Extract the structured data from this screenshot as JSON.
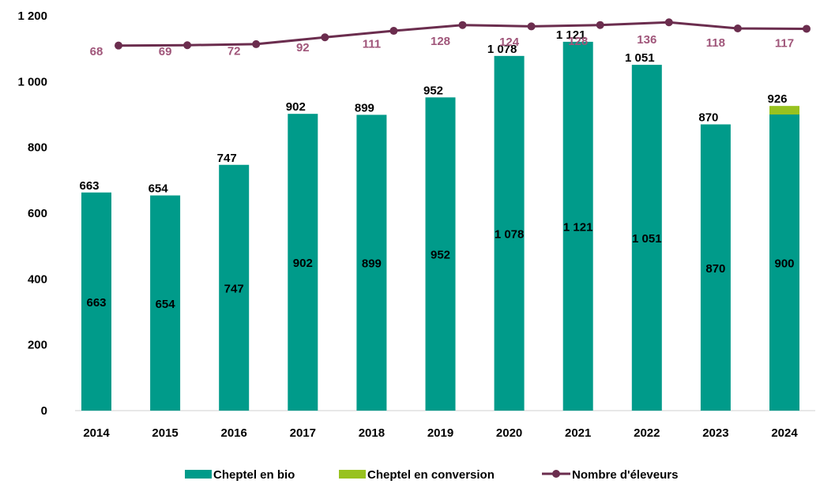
{
  "chart_data": {
    "type": "bar",
    "stacked": true,
    "categories": [
      "2014",
      "2015",
      "2016",
      "2017",
      "2018",
      "2019",
      "2020",
      "2021",
      "2022",
      "2023",
      "2024"
    ],
    "series": [
      {
        "name": "Cheptel en bio",
        "type": "bar",
        "color": "#009B8A",
        "values": [
          663,
          654,
          747,
          902,
          899,
          952,
          1078,
          1121,
          1051,
          870,
          900
        ],
        "labels": [
          "663",
          "654",
          "747",
          "902",
          "899",
          "952",
          "1 078",
          "1 121",
          "1 051",
          "870",
          "900"
        ]
      },
      {
        "name": "Cheptel en conversion",
        "type": "bar",
        "color": "#98C21F",
        "values": [
          0,
          0,
          0,
          0,
          0,
          0,
          0,
          0,
          0,
          0,
          26
        ]
      },
      {
        "name": "Nombre d'éleveurs",
        "type": "line",
        "color": "#6B2D4E",
        "label_color": "#A0567A",
        "values": [
          68,
          69,
          72,
          92,
          111,
          128,
          124,
          128,
          136,
          118,
          117
        ],
        "labels": [
          "68",
          "69",
          "72",
          "92",
          "111",
          "128",
          "124",
          "128",
          "136",
          "118",
          "117"
        ]
      }
    ],
    "totals": {
      "values": [
        663,
        654,
        747,
        902,
        899,
        952,
        1078,
        1121,
        1051,
        870,
        926
      ],
      "labels": [
        "663",
        "654",
        "747",
        "902",
        "899",
        "952",
        "1 078",
        "1 121",
        "1 051",
        "870",
        "926"
      ]
    },
    "yaxis": {
      "ylim": [
        0,
        1200
      ],
      "ticks": [
        0,
        200,
        400,
        600,
        800,
        1000,
        1200
      ],
      "tick_labels": [
        "0",
        "200",
        "400",
        "600",
        "800",
        "1 000",
        "1 200"
      ]
    },
    "legend": {
      "position": "bottom",
      "entries": [
        "Cheptel en bio",
        "Cheptel en conversion",
        "Nombre d'éleveurs"
      ]
    },
    "grid": false
  }
}
